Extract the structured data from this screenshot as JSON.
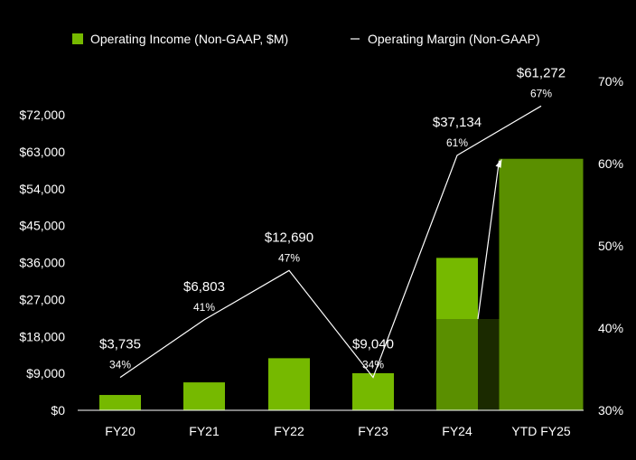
{
  "chart_data": {
    "type": "bar",
    "categories": [
      "FY20",
      "FY21",
      "FY22",
      "FY23",
      "FY24",
      "YTD FY25"
    ],
    "series": [
      {
        "name": "Operating Income (Non-GAAP, $M)",
        "kind": "bar",
        "values": [
          3735,
          6803,
          12690,
          9040,
          37134,
          61272
        ],
        "labels": [
          "$3,735",
          "$6,803",
          "$12,690",
          "$9,040",
          "$37,134",
          "$61,272"
        ],
        "color": "#76b900"
      },
      {
        "name": "Operating Margin (Non-GAAP)",
        "kind": "line",
        "axis": "right",
        "values": [
          34,
          41,
          47,
          34,
          61,
          67
        ],
        "labels": [
          "34%",
          "41%",
          "47%",
          "34%",
          "61%",
          "67%"
        ],
        "color": "#ffffff"
      }
    ],
    "ylim": [
      0,
      72000
    ],
    "yticks": [
      "$0",
      "$9,000",
      "$18,000",
      "$27,000",
      "$36,000",
      "$45,000",
      "$54,000",
      "$63,000",
      "$72,000"
    ],
    "y2lim": [
      30,
      70
    ],
    "y2ticks": [
      "30%",
      "40%",
      "50%",
      "60%",
      "70%"
    ],
    "legend": "top",
    "grid": false,
    "colors": {
      "bar": "#76b900",
      "bar_dark": "#5a8f00",
      "shade": "#1b2a00",
      "line": "#ffffff",
      "axis": "#ffffff"
    }
  }
}
